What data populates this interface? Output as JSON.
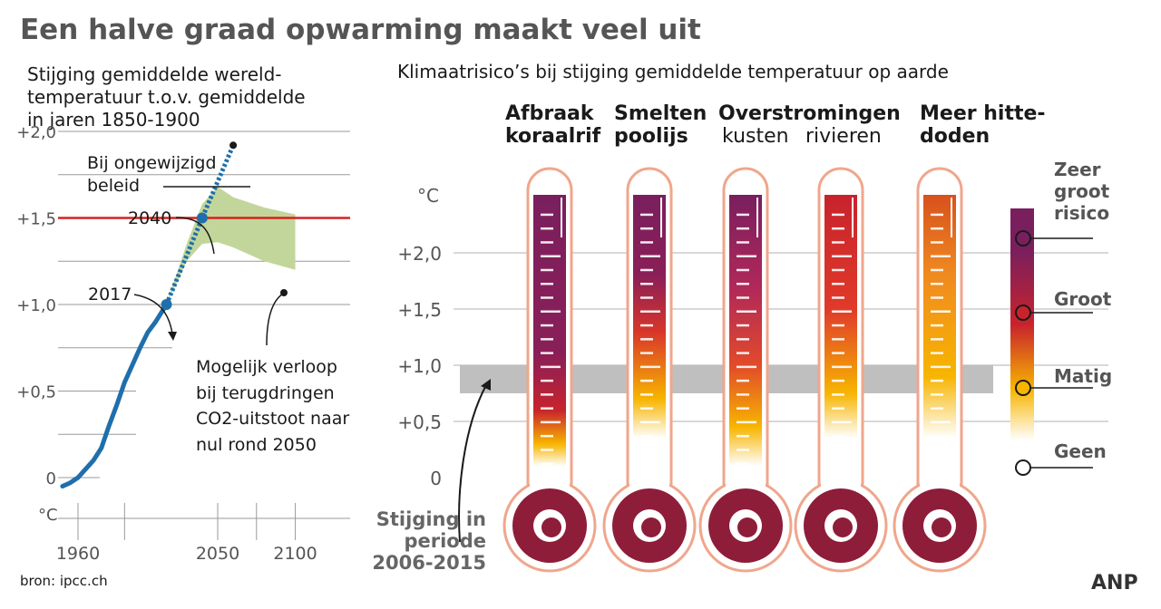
{
  "title": "Een halve graad opwarming maakt veel uit",
  "source": "bron: ipcc.ch",
  "logo": "ANP",
  "colors": {
    "title": "#555555",
    "line": "#1f6fab",
    "target": "#d6221e",
    "band": "#c2d69b",
    "gray_band": "#bfbfbf",
    "thermo_outline": "#f0a68c",
    "bulb": "#8e1d3a",
    "risk_very_high": "#7a1f5e",
    "risk_high": "#c8232c",
    "risk_moderate": "#f7b500",
    "risk_none": "#ffffff"
  },
  "left": {
    "subtitle_lines": [
      "Stijging gemiddelde wereld-",
      "temperatuur t.o.v. gemiddelde",
      "in jaren 1850-1900"
    ],
    "unit": "°C",
    "y_ticks": [
      {
        "v": 0,
        "label": "0"
      },
      {
        "v": 0.5,
        "label": "+0,5"
      },
      {
        "v": 1.0,
        "label": "+1,0"
      },
      {
        "v": 1.5,
        "label": "+1,5"
      },
      {
        "v": 2.0,
        "label": "+2,0"
      }
    ],
    "x_ticks": [
      {
        "v": 1960,
        "label": "1960"
      },
      {
        "v": 2050,
        "label": "2050"
      },
      {
        "v": 2100,
        "label": "2100"
      }
    ],
    "annotations": {
      "unchanged": [
        "Bij ongewijzigd",
        "beleid"
      ],
      "y2040": "2040",
      "y2017": "2017",
      "possible": [
        "Mogelijk verloop",
        "bij terugdringen",
        "CO2-uitstoot naar",
        "nul rond 2050"
      ]
    }
  },
  "chart_data": [
    {
      "type": "line",
      "title": "Stijging gemiddelde wereld-temperatuur t.o.v. gemiddelde in jaren 1850-1900",
      "ylabel": "°C",
      "xlim": [
        1950,
        2115
      ],
      "ylim": [
        -0.2,
        2.05
      ],
      "target_line": 1.5,
      "series": [
        {
          "name": "observed",
          "x": [
            1950,
            1955,
            1960,
            1965,
            1970,
            1975,
            1980,
            1985,
            1990,
            1995,
            2000,
            2005,
            2010,
            2017
          ],
          "y": [
            -0.05,
            -0.03,
            0.0,
            0.05,
            0.1,
            0.17,
            0.3,
            0.42,
            0.55,
            0.65,
            0.75,
            0.84,
            0.9,
            1.0
          ]
        },
        {
          "name": "Bij ongewijzigd beleid",
          "x": [
            2017,
            2040,
            2060
          ],
          "y": [
            1.0,
            1.5,
            1.92
          ]
        },
        {
          "name": "Mogelijk verloop bij terugdringen CO2-uitstoot naar nul rond 2050",
          "upper": {
            "x": [
              2017,
              2030,
              2040,
              2050,
              2060,
              2080,
              2100
            ],
            "y": [
              1.0,
              1.35,
              1.58,
              1.68,
              1.62,
              1.56,
              1.52
            ]
          },
          "lower": {
            "x": [
              2100,
              2080,
              2060,
              2050,
              2040,
              2030,
              2017
            ],
            "y": [
              1.2,
              1.25,
              1.33,
              1.36,
              1.35,
              1.25,
              1.0
            ]
          }
        }
      ],
      "points": [
        {
          "label": "2017",
          "x": 2017,
          "y": 1.0
        },
        {
          "label": "2040",
          "x": 2040,
          "y": 1.5
        },
        {
          "x": 2060,
          "y": 1.92
        }
      ]
    },
    {
      "type": "bar",
      "title": "Klimaatrisico’s bij stijging gemiddelde temperatuur op aarde",
      "ylabel": "°C",
      "ylim": [
        0,
        2.0
      ],
      "y_ticks": [
        {
          "v": 0,
          "label": "0"
        },
        {
          "v": 0.5,
          "label": "+0,5"
        },
        {
          "v": 1.0,
          "label": "+1,0"
        },
        {
          "v": 1.5,
          "label": "+1,5"
        },
        {
          "v": 2.0,
          "label": "+2,0"
        }
      ],
      "observed_band": {
        "from": 0.75,
        "to": 1.0,
        "label": [
          "Stijging in",
          "periode",
          "2006-2015"
        ]
      },
      "categories": [
        {
          "name": [
            "Afbraak",
            "koraalrif"
          ],
          "bold": true
        },
        {
          "name": [
            "Smelten",
            "poolijs"
          ],
          "bold": true
        },
        {
          "name": [
            "Overstromingen",
            "kusten"
          ],
          "bold": true
        },
        {
          "name": [
            "",
            "rivieren"
          ],
          "bold": false
        },
        {
          "name": [
            "Meer hitte-",
            "doden"
          ],
          "bold": true
        }
      ],
      "risk_levels": [
        {
          "label": [
            "Zeer",
            "groot",
            "risico"
          ],
          "color": "#7a1f5e",
          "v": 2.2
        },
        {
          "label": [
            "Groot"
          ],
          "color": "#c8232c",
          "v": 1.5
        },
        {
          "label": [
            "Matig"
          ],
          "color": "#f7b500",
          "v": 0.82
        },
        {
          "label": [
            "Geen"
          ],
          "color": "#ffffff",
          "v": 0.05
        }
      ],
      "gradients": [
        [
          {
            "v": 0.1,
            "c": "#ffffff"
          },
          {
            "v": 0.3,
            "c": "#f7b500"
          },
          {
            "v": 0.6,
            "c": "#c8232c"
          },
          {
            "v": 1.1,
            "c": "#8a1f58"
          },
          {
            "v": 2.5,
            "c": "#7a1f5e"
          }
        ],
        [
          {
            "v": 0.35,
            "c": "#ffffff"
          },
          {
            "v": 0.7,
            "c": "#f7b500"
          },
          {
            "v": 1.3,
            "c": "#d8352a"
          },
          {
            "v": 1.8,
            "c": "#8a1f58"
          },
          {
            "v": 2.5,
            "c": "#7a1f5e"
          }
        ],
        [
          {
            "v": 0.1,
            "c": "#ffffff"
          },
          {
            "v": 0.45,
            "c": "#f7b500"
          },
          {
            "v": 1.0,
            "c": "#e24a2a"
          },
          {
            "v": 1.7,
            "c": "#b0285a"
          },
          {
            "v": 2.5,
            "c": "#7a1f5e"
          }
        ],
        [
          {
            "v": 0.35,
            "c": "#ffffff"
          },
          {
            "v": 0.75,
            "c": "#f7b500"
          },
          {
            "v": 1.5,
            "c": "#e03a2a"
          },
          {
            "v": 2.5,
            "c": "#c8232c"
          }
        ],
        [
          {
            "v": 0.35,
            "c": "#ffffff"
          },
          {
            "v": 0.9,
            "c": "#f7b500"
          },
          {
            "v": 1.8,
            "c": "#f08a20"
          },
          {
            "v": 2.5,
            "c": "#d8521e"
          }
        ]
      ]
    }
  ]
}
